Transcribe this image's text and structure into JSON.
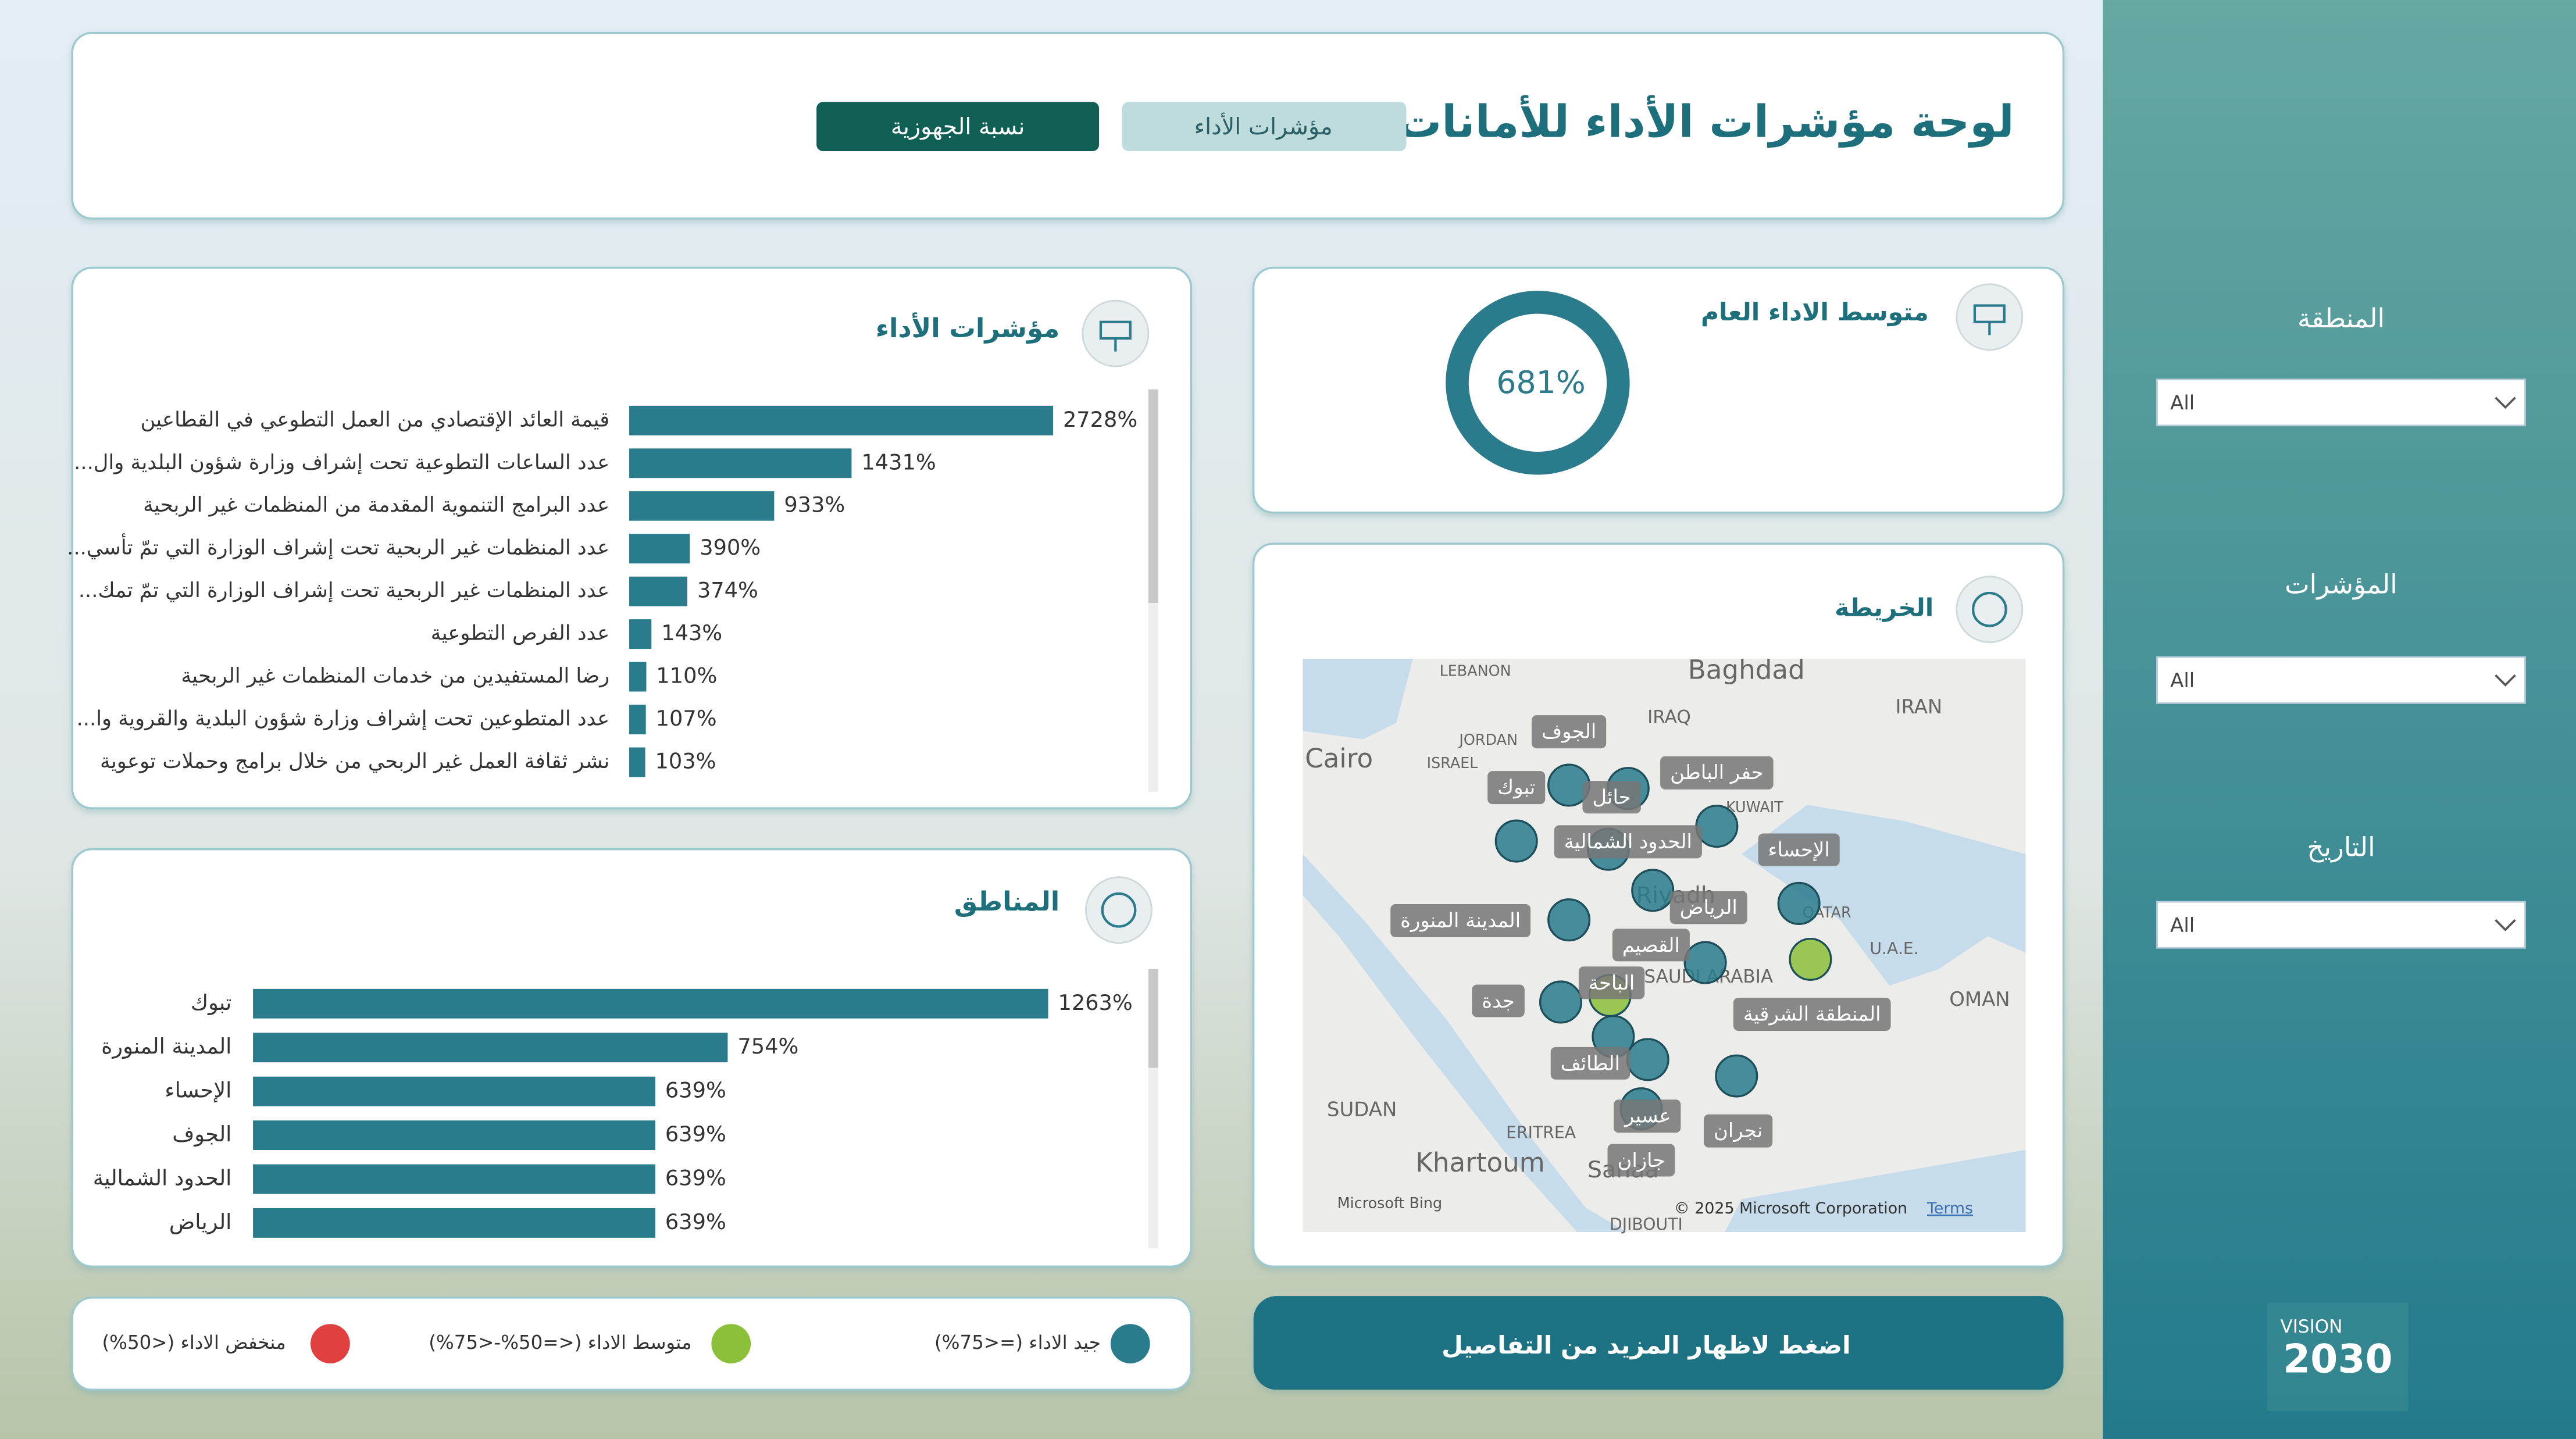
{
  "header": {
    "title": "لوحة مؤشرات الأداء للأمانات",
    "tabs": [
      "مؤشرات الأداء",
      "نسبة الجهوزية"
    ]
  },
  "kpi": {
    "title": "متوسط الاداء العام",
    "value": 681,
    "value_label": "681%"
  },
  "chart_data": [
    {
      "type": "bar",
      "title": "مؤشرات الأداء",
      "color": "#2a7b8c",
      "categories": [
        "قيمة العائد الإقتصادي من العمل التطوعي في القطاعين",
        "عدد الساعات التطوعية تحت إشراف وزارة شؤون البلدية وال...",
        "عدد البرامج التنموية المقدمة من المنظمات غير الربحية",
        "عدد المنظمات غير الربحية تحت إشراف الوزارة التي تمّ تأسي...",
        "عدد المنظمات غير الربحية تحت إشراف الوزارة التي تمّ تمك...",
        "عدد الفرص التطوعية",
        "رضا المستفيدين من خدمات المنظمات غير الربحية",
        "عدد المتطوعين تحت إشراف وزارة شؤون البلدية والقروية وا...",
        "نشر ثقافة العمل غير الربحي من خلال برامج وحملات توعوية"
      ],
      "values": [
        2728,
        1431,
        933,
        390,
        374,
        143,
        110,
        107,
        103
      ],
      "value_labels": [
        "2728%",
        "1431%",
        "933%",
        "390%",
        "374%",
        "143%",
        "110%",
        "107%",
        "103%"
      ]
    },
    {
      "type": "bar",
      "title": "المناطق",
      "color": "#2a7b8c",
      "categories": [
        "تبوك",
        "المدينة المنورة",
        "الإحساء",
        "الجوف",
        "الحدود الشمالية",
        "الرياض"
      ],
      "values": [
        1263,
        754,
        639,
        639,
        639,
        639
      ],
      "value_labels": [
        "1263%",
        "754%",
        "639%",
        "639%",
        "639%",
        "639%"
      ]
    }
  ],
  "map": {
    "title": "الخريطة",
    "regions": [
      {
        "label": "الجوف",
        "color": "#2a7b8c"
      },
      {
        "label": "تبوك",
        "color": "#2a7b8c"
      },
      {
        "label": "حائل",
        "color": "#2a7b8c"
      },
      {
        "label": "حفر الباطن",
        "color": "#2a7b8c"
      },
      {
        "label": "الحدود الشمالية",
        "color": "#2a7b8c"
      },
      {
        "label": "الإحساء",
        "color": "#2a7b8c"
      },
      {
        "label": "المدينة المنورة",
        "color": "#2a7b8c"
      },
      {
        "label": "الرياض",
        "color": "#2a7b8c"
      },
      {
        "label": "القصيم",
        "color": "#2a7b8c"
      },
      {
        "label": "الباحة",
        "color": "#8cbf3a"
      },
      {
        "label": "جدة",
        "color": "#2a7b8c"
      },
      {
        "label": "المنطقة الشرقية",
        "color": "#8cbf3a"
      },
      {
        "label": "الطائف",
        "color": "#2a7b8c"
      },
      {
        "label": "عسير",
        "color": "#2a7b8c"
      },
      {
        "label": "نجران",
        "color": "#2a7b8c"
      },
      {
        "label": "جازان",
        "color": "#2a7b8c"
      }
    ],
    "places": [
      "Baghdad",
      "Cairo",
      "IRAQ",
      "IRAN",
      "LEBANON",
      "JORDAN",
      "ISRAEL",
      "KUWAIT",
      "QATAR",
      "U.A.E.",
      "OMAN",
      "SUDAN",
      "ERITREA",
      "Khartoum",
      "Riyadh",
      "SAUDI ARABIA",
      "DJIBOUTI",
      "Sanaa"
    ],
    "attribution": "© 2025 Microsoft Corporation",
    "terms": "Terms",
    "provider": "Microsoft Bing"
  },
  "legend": [
    {
      "label": "جيد الاداء (=<75%)",
      "color": "#2a7b8c"
    },
    {
      "label": "متوسط الاداء (<=50%-<75%)",
      "color": "#8cbf3a"
    },
    {
      "label": "منخفض الاداء (<50%)",
      "color": "#e04040"
    }
  ],
  "button": "اضغط لاظهار المزيد من التفاصيل",
  "filters": [
    {
      "label": "المنطقة",
      "value": "All"
    },
    {
      "label": "المؤشرات",
      "value": "All"
    },
    {
      "label": "التاريخ",
      "value": "All"
    }
  ],
  "logo": {
    "vision": "VISION",
    "year": "2030"
  }
}
